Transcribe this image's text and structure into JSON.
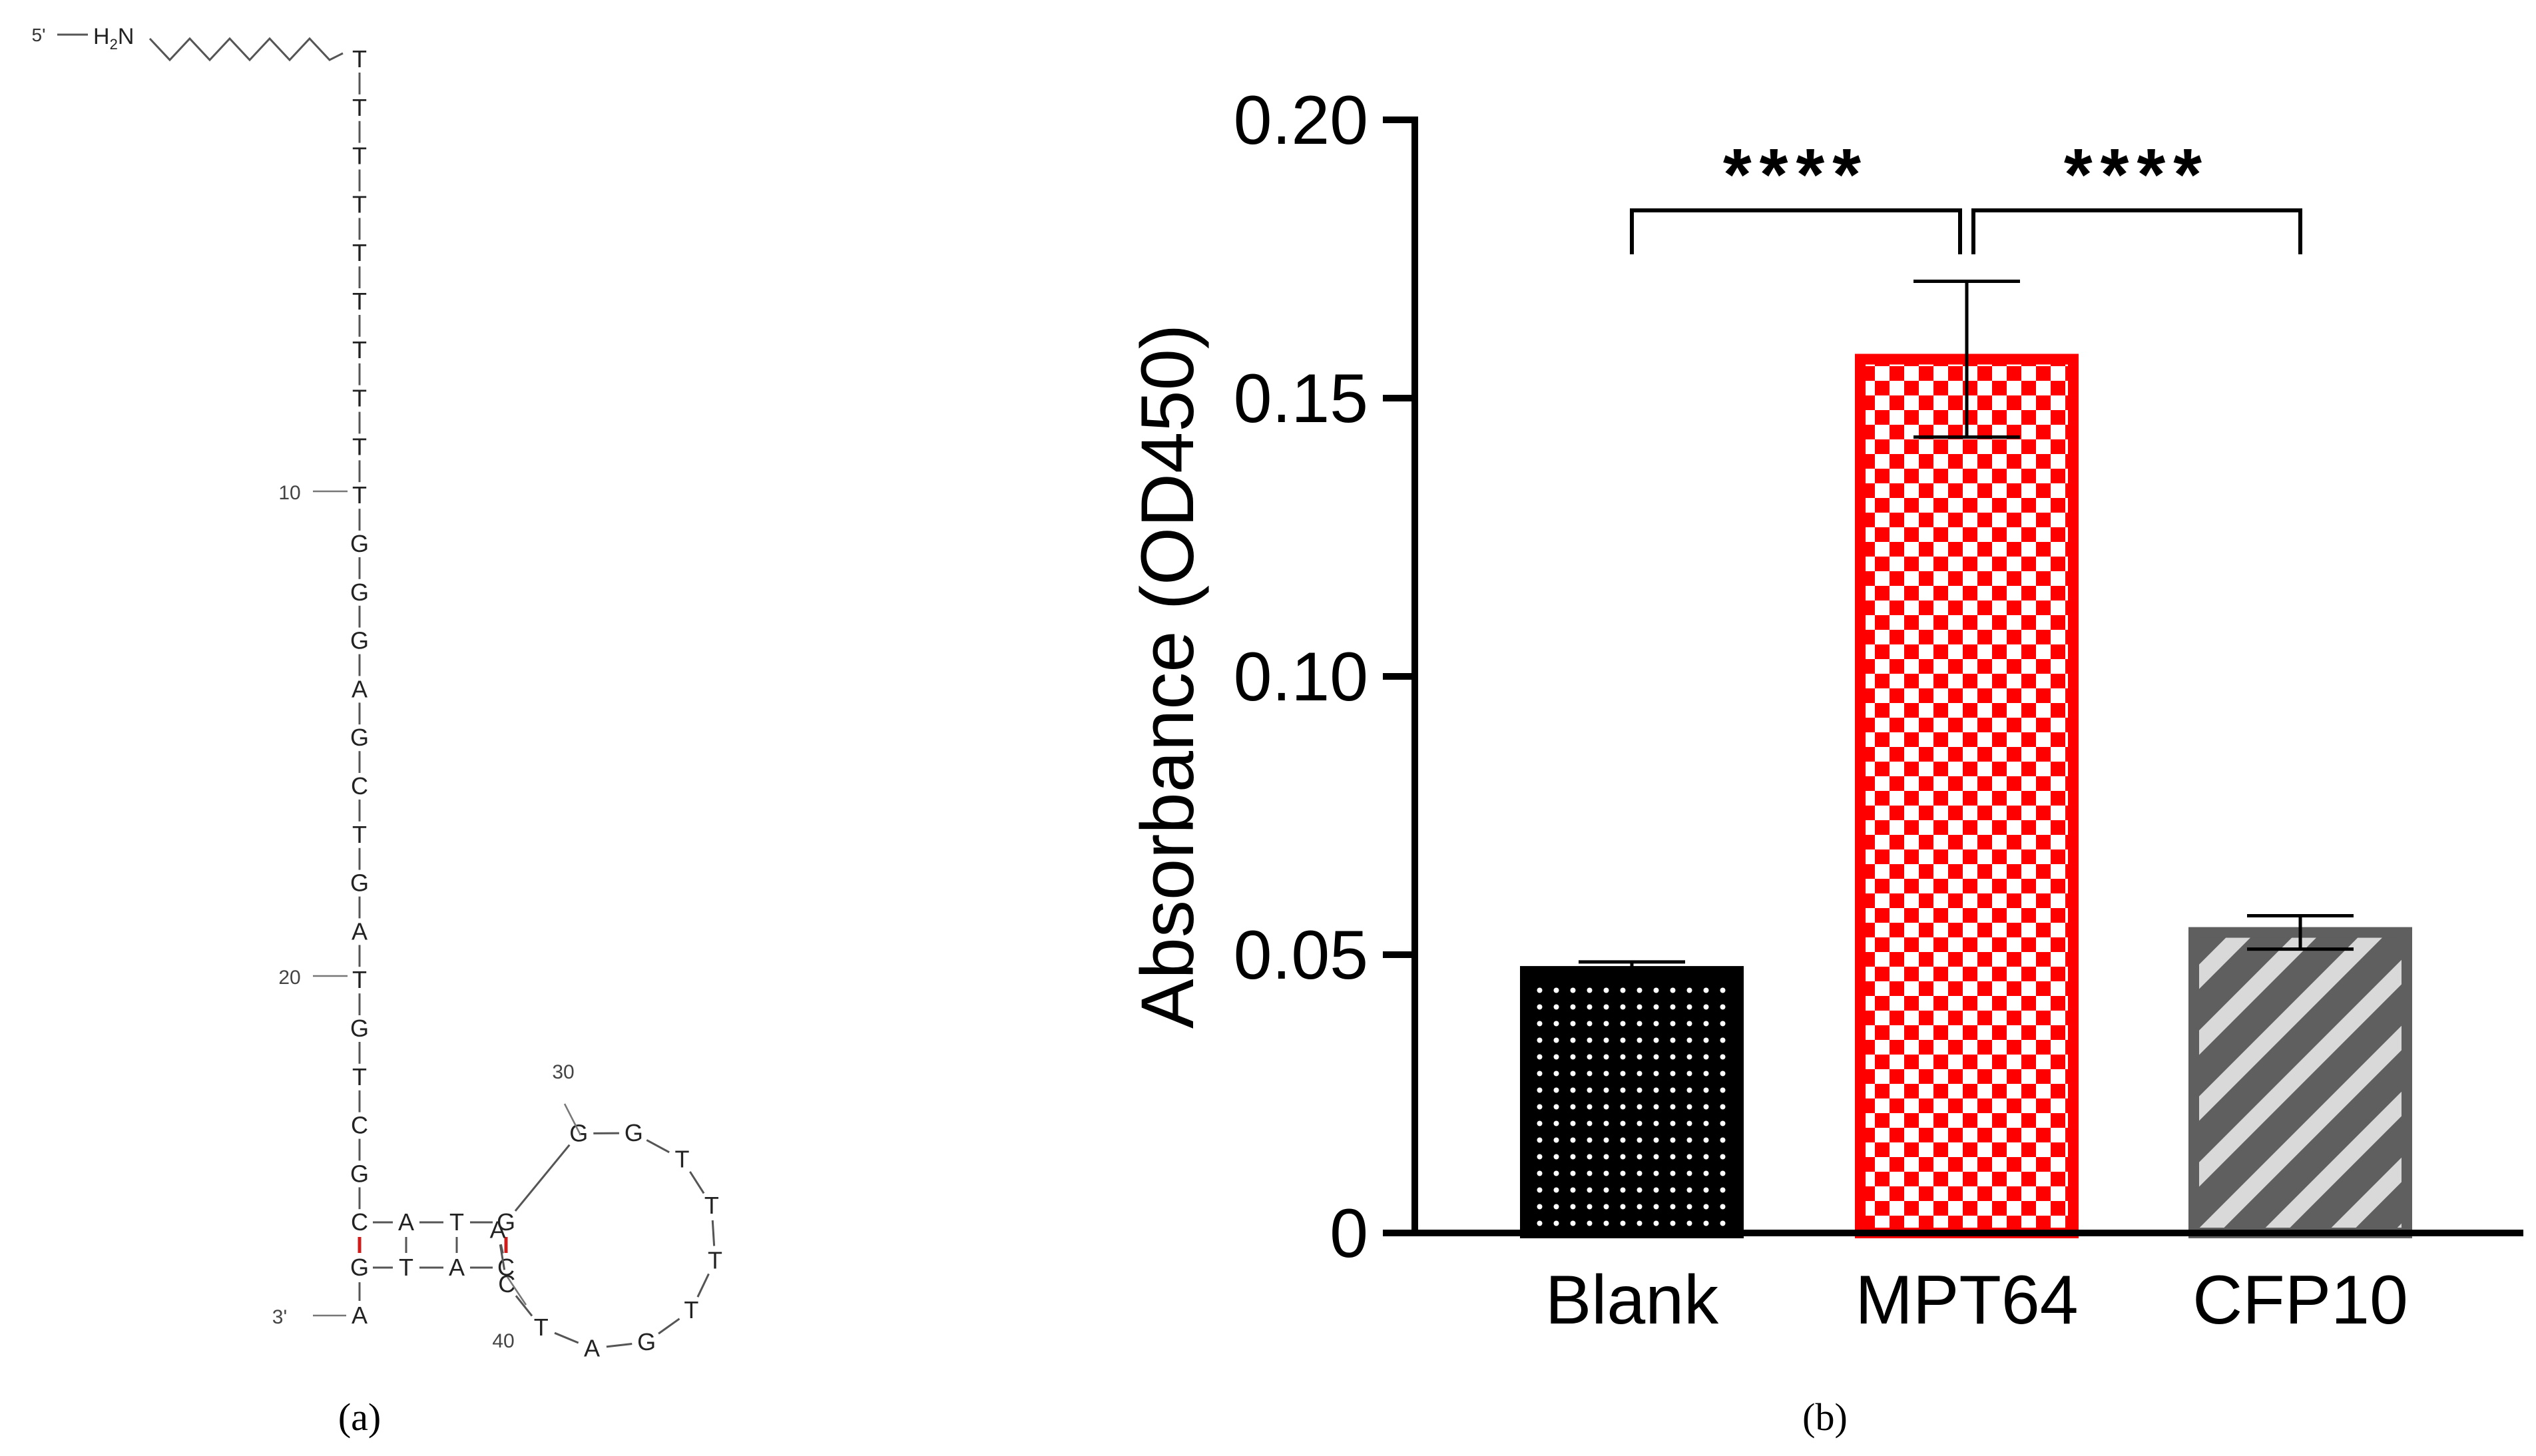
{
  "panel_a": {
    "label": "(a)",
    "five_prime": "5'",
    "three_prime": "3'",
    "amine": "H2N",
    "amine_main": "H",
    "amine_sub": "2",
    "amine_n": "N",
    "stem_sequence": [
      "T",
      "T",
      "T",
      "T",
      "T",
      "T",
      "T",
      "T",
      "T",
      "T",
      "G",
      "G",
      "G",
      "A",
      "G",
      "C",
      "T",
      "G",
      "A",
      "T",
      "G",
      "T",
      "C",
      "G",
      "C"
    ],
    "bottom_row": [
      "G",
      "T",
      "A",
      "C"
    ],
    "top_row": [
      "A",
      "T",
      "G"
    ],
    "loop_sequence": [
      "G",
      "G",
      "T",
      "T",
      "T",
      "T",
      "G",
      "A",
      "T",
      "C",
      "A"
    ],
    "last_base": "A",
    "numbers": {
      "n10": "10",
      "n20": "20",
      "n30": "30",
      "n40": "40"
    },
    "pair_color": "#d11a1a"
  },
  "panel_b": {
    "label": "(b)"
  },
  "chart_data": {
    "type": "bar",
    "title": "",
    "xlabel": "",
    "ylabel": "Absorbance (OD450)",
    "ylim": [
      0,
      0.2
    ],
    "yticks": [
      0,
      0.05,
      0.1,
      0.15,
      0.2
    ],
    "ytick_labels": [
      "0",
      "0.05",
      "0.10",
      "0.15",
      "0.20"
    ],
    "categories": [
      "Blank",
      "MPT64",
      "CFP10"
    ],
    "values": [
      0.047,
      0.157,
      0.054
    ],
    "errors": [
      0.0017,
      0.014,
      0.003
    ],
    "patterns": [
      "dots",
      "checker",
      "stripes"
    ],
    "colors": [
      "#000000",
      "#ff0000",
      "#5f5f5f"
    ],
    "significance": [
      {
        "from": 0,
        "to": 1,
        "label": "****"
      },
      {
        "from": 1,
        "to": 2,
        "label": "****"
      }
    ]
  }
}
